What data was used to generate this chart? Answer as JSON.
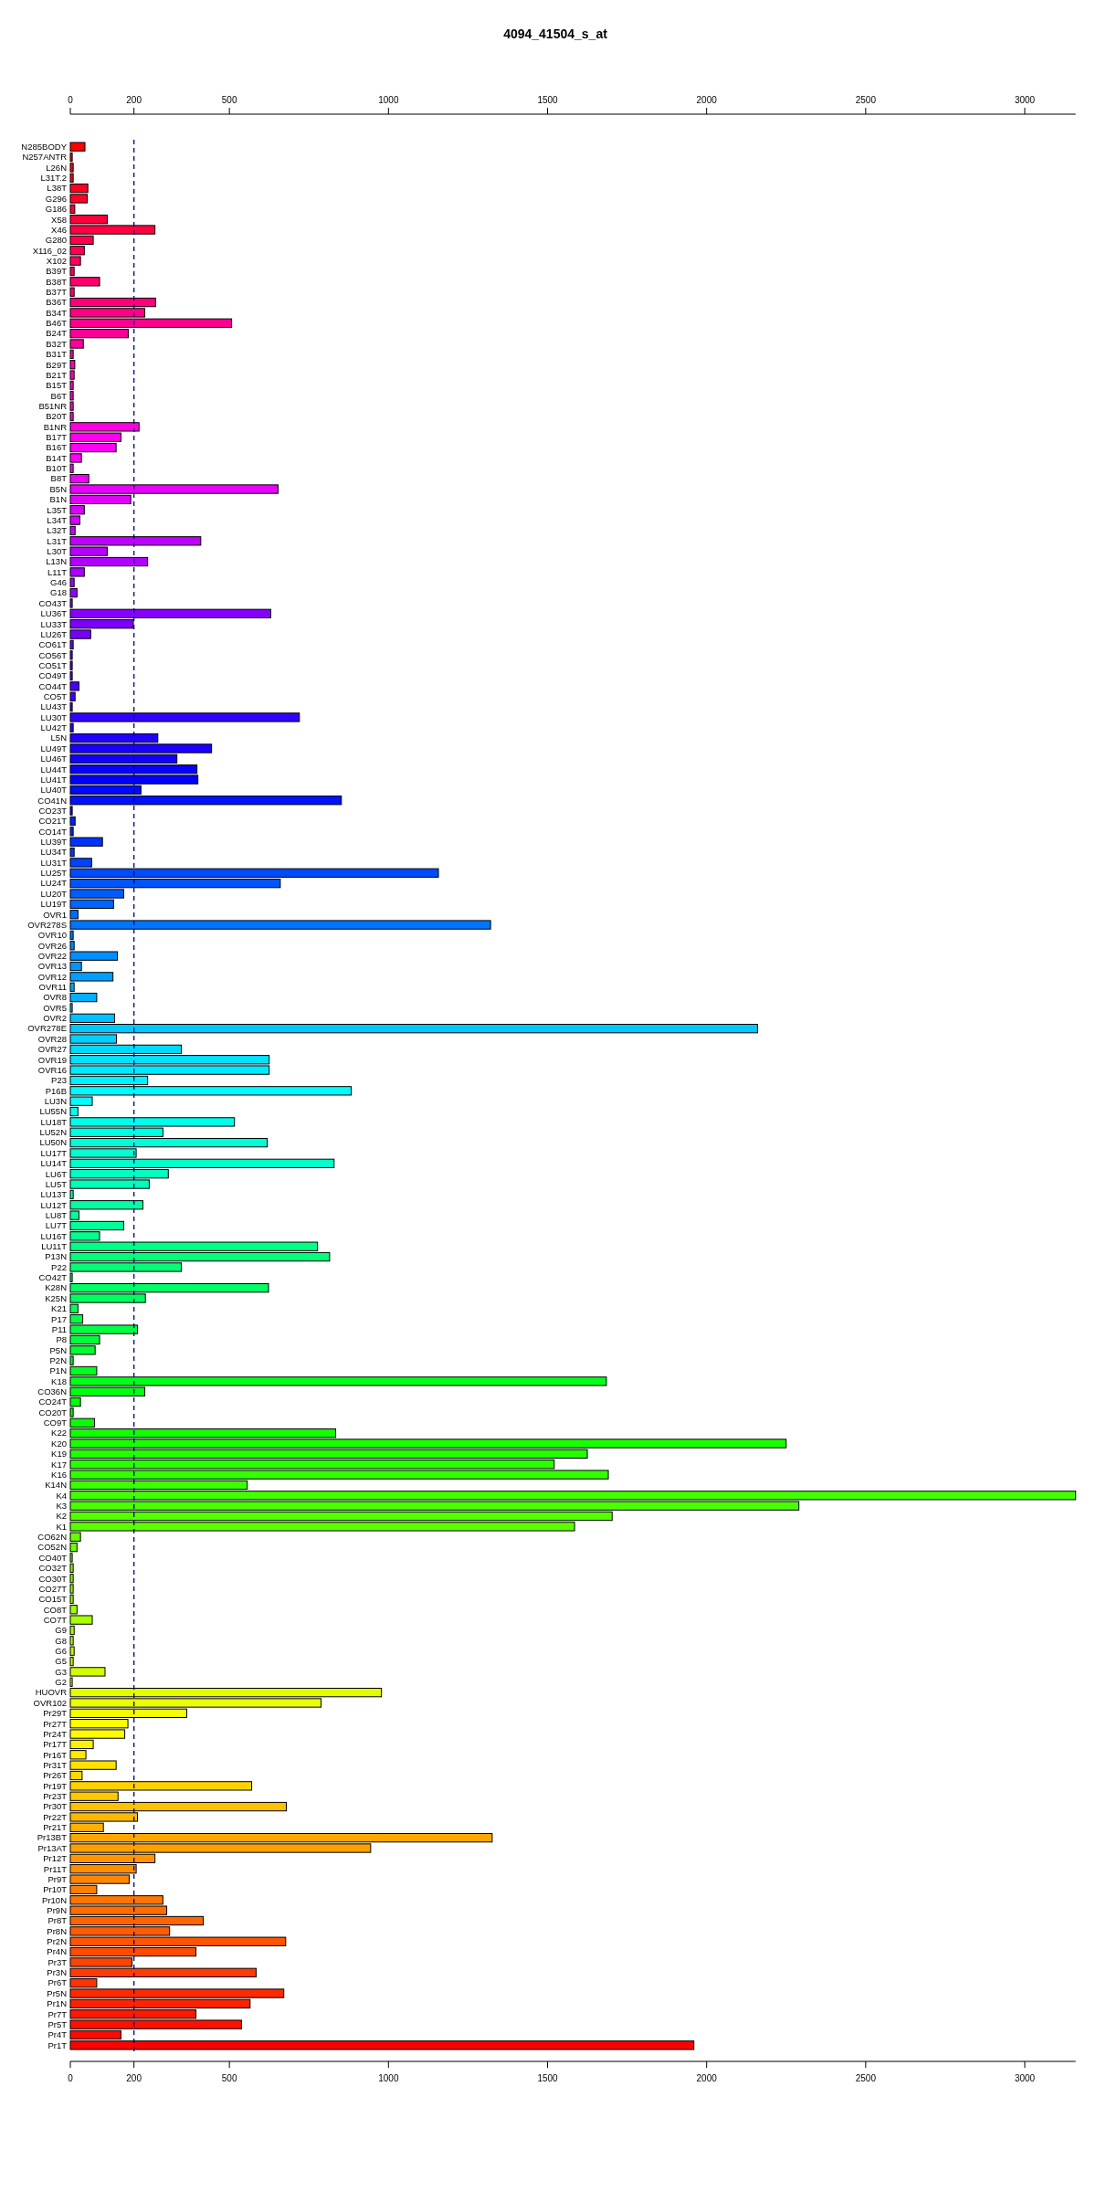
{
  "chart_data": {
    "type": "bar",
    "orientation": "horizontal",
    "title": "4094_41504_s_at",
    "categories": [
      "N285BODY",
      "N257ANTR",
      "L26N",
      "L31T.2",
      "L38T",
      "G296",
      "G186",
      "X58",
      "X46",
      "G280",
      "X116_02",
      "X102",
      "B39T",
      "B38T",
      "B37T",
      "B36T",
      "B34T",
      "B46T",
      "B24T",
      "B32T",
      "B31T",
      "B29T",
      "B21T",
      "B15T",
      "B6T",
      "B51NR",
      "B20T",
      "B1NR",
      "B17T",
      "B16T",
      "B14T",
      "B10T",
      "B8T",
      "B5N",
      "B1N",
      "L35T",
      "L34T",
      "L32T",
      "L31T",
      "L30T",
      "L13N",
      "L11T",
      "G46",
      "G18",
      "CO43T",
      "LU36T",
      "LU33T",
      "LU26T",
      "CO61T",
      "CO56T",
      "CO51T",
      "CO49T",
      "CO44T",
      "CO5T",
      "LU43T",
      "LU30T",
      "LU42T",
      "L5N",
      "LU49T",
      "LU46T",
      "LU44T",
      "LU41T",
      "LU40T",
      "CO41N",
      "CO23T",
      "CO21T",
      "CO14T",
      "LU39T",
      "LU34T",
      "LU31T",
      "LU25T",
      "LU24T",
      "LU20T",
      "LU19T",
      "OVR1",
      "OVR278S",
      "OVR10",
      "OVR26",
      "OVR22",
      "OVR13",
      "OVR12",
      "OVR11",
      "OVR8",
      "OVR5",
      "OVR2",
      "OVR278E",
      "OVR28",
      "OVR27",
      "OVR19",
      "OVR16",
      "P23",
      "P16B",
      "LU3N",
      "LU55N",
      "LU18T",
      "LU52N",
      "LU50N",
      "LU17T",
      "LU14T",
      "LU6T",
      "LU5T",
      "LU13T",
      "LU12T",
      "LU8T",
      "LU7T",
      "LU16T",
      "LU11T",
      "P13N",
      "P22",
      "CO42T",
      "K28N",
      "K25N",
      "K21",
      "P17",
      "P11",
      "P8",
      "P5N",
      "P2N",
      "P1N",
      "K18",
      "CO36N",
      "CO24T",
      "CO20T",
      "CO9T",
      "K22",
      "K20",
      "K19",
      "K17",
      "K16",
      "K14N",
      "K4",
      "K3",
      "K2",
      "K1",
      "CO62N",
      "CO52N",
      "CO40T",
      "CO32T",
      "CO30T",
      "CO27T",
      "CO15T",
      "CO8T",
      "CO7T",
      "G9",
      "G8",
      "G6",
      "G5",
      "G3",
      "G2",
      "HUOVR",
      "OVR102",
      "Pr29T",
      "Pr27T",
      "Pr24T",
      "Pr17T",
      "Pr16T",
      "Pr31T",
      "Pr26T",
      "Pr19T",
      "Pr23T",
      "Pr30T",
      "Pr22T",
      "Pr21T",
      "Pr13BT",
      "Pr13AT",
      "Pr12T",
      "Pr11T",
      "Pr9T",
      "Pr10T",
      "Pr10N",
      "Pr9N",
      "Pr8T",
      "Pr8N",
      "Pr2N",
      "Pr4N",
      "Pr3T",
      "Pr3N",
      "Pr6T",
      "Pr5N",
      "Pr1N",
      "Pr7T",
      "Pr5T",
      "Pr4T",
      "Pr1T"
    ],
    "values": [
      46,
      6,
      9,
      9,
      55,
      53,
      14,
      116,
      266,
      72,
      44,
      32,
      12,
      92,
      12,
      268,
      234,
      507,
      182,
      41,
      9,
      14,
      12,
      9,
      9,
      9,
      9,
      216,
      159,
      144,
      35,
      9,
      58,
      653,
      190,
      44,
      30,
      15,
      410,
      116,
      243,
      44,
      12,
      21,
      6,
      630,
      198,
      64,
      9,
      6,
      6,
      6,
      27,
      15,
      6,
      720,
      9,
      275,
      444,
      335,
      398,
      401,
      222,
      852,
      6,
      15,
      9,
      101,
      12,
      67,
      1157,
      660,
      168,
      136,
      24,
      1321,
      9,
      12,
      148,
      35,
      134,
      12,
      83,
      6,
      139,
      2160,
      145,
      349,
      625,
      625,
      243,
      883,
      69,
      24,
      516,
      291,
      619,
      207,
      829,
      308,
      248,
      9,
      228,
      27,
      168,
      92,
      777,
      815,
      349,
      6,
      623,
      236,
      24,
      39,
      211,
      92,
      78,
      9,
      83,
      1685,
      234,
      32,
      9,
      76,
      834,
      2250,
      1625,
      1521,
      1691,
      556,
      3160,
      2290,
      1703,
      1585,
      32,
      21,
      6,
      9,
      9,
      9,
      9,
      21,
      69,
      12,
      9,
      12,
      9,
      109,
      6,
      978,
      788,
      366,
      181,
      171,
      72,
      49,
      144,
      37,
      570,
      150,
      679,
      211,
      104,
      1326,
      944,
      266,
      207,
      185,
      83,
      291,
      303,
      418,
      312,
      677,
      395,
      194,
      584,
      83,
      671,
      565,
      395,
      538,
      159,
      1960
    ],
    "colors": [
      "#ff0000",
      "#ff0008",
      "#ff0011",
      "#ff0019",
      "#ff0021",
      "#ff002a",
      "#ff0032",
      "#ff003b",
      "#ff0043",
      "#ff004b",
      "#ff0054",
      "#ff005c",
      "#ff0064",
      "#ff006d",
      "#ff0075",
      "#ff007d",
      "#ff0086",
      "#ff008e",
      "#ff0096",
      "#ff009f",
      "#ff00a7",
      "#ff00b0",
      "#ff00b8",
      "#ff00c0",
      "#ff00c9",
      "#ff00d1",
      "#ff00d9",
      "#ff00e2",
      "#ff00ea",
      "#ff00f2",
      "#ff00fb",
      "#fb00ff",
      "#f200ff",
      "#ea00ff",
      "#e200ff",
      "#d900ff",
      "#d100ff",
      "#c900ff",
      "#c000ff",
      "#b800ff",
      "#b000ff",
      "#a700ff",
      "#9f00ff",
      "#9600ff",
      "#8e00ff",
      "#8600ff",
      "#7d00ff",
      "#7500ff",
      "#6d00ff",
      "#6400ff",
      "#5c00ff",
      "#5400ff",
      "#4b00ff",
      "#4300ff",
      "#3b00ff",
      "#3200ff",
      "#2a00ff",
      "#2100ff",
      "#1900ff",
      "#1100ff",
      "#0800ff",
      "#0000ff",
      "#0008ff",
      "#0011ff",
      "#0019ff",
      "#0021ff",
      "#002aff",
      "#0032ff",
      "#003bff",
      "#0043ff",
      "#004bff",
      "#0054ff",
      "#005cff",
      "#0064ff",
      "#006dff",
      "#0075ff",
      "#007dff",
      "#0086ff",
      "#008eff",
      "#0096ff",
      "#009fff",
      "#00a7ff",
      "#00b0ff",
      "#00b8ff",
      "#00c0ff",
      "#00c9ff",
      "#00d1ff",
      "#00d9ff",
      "#00e2ff",
      "#00eaff",
      "#00f2ff",
      "#00fbff",
      "#00fffb",
      "#00fff2",
      "#00ffea",
      "#00ffe2",
      "#00ffd9",
      "#00ffd1",
      "#00ffc9",
      "#00ffc0",
      "#00ffb8",
      "#00ffb0",
      "#00ffa7",
      "#00ff9f",
      "#00ff96",
      "#00ff8e",
      "#00ff86",
      "#00ff7d",
      "#00ff75",
      "#00ff6d",
      "#00ff64",
      "#00ff5c",
      "#00ff54",
      "#00ff4b",
      "#00ff43",
      "#00ff3b",
      "#00ff32",
      "#00ff2a",
      "#00ff21",
      "#00ff19",
      "#00ff11",
      "#00ff08",
      "#00ff00",
      "#08ff00",
      "#11ff00",
      "#19ff00",
      "#21ff00",
      "#2aff00",
      "#32ff00",
      "#3bff00",
      "#43ff00",
      "#4bff00",
      "#54ff00",
      "#5cff00",
      "#64ff00",
      "#6dff00",
      "#75ff00",
      "#7dff00",
      "#86ff00",
      "#8eff00",
      "#96ff00",
      "#9fff00",
      "#a7ff00",
      "#b0ff00",
      "#b8ff00",
      "#c0ff00",
      "#c9ff00",
      "#d1ff00",
      "#d9ff00",
      "#e2ff00",
      "#eaff00",
      "#f2ff00",
      "#fbff00",
      "#fffb00",
      "#fff200",
      "#ffea00",
      "#ffe200",
      "#ffd900",
      "#ffd100",
      "#ffc900",
      "#ffc000",
      "#ffb800",
      "#ffb000",
      "#ffa700",
      "#ff9f00",
      "#ff9600",
      "#ff8e00",
      "#ff8600",
      "#ff7d00",
      "#ff7500",
      "#ff6d00",
      "#ff6400",
      "#ff5c00",
      "#ff5400",
      "#ff4b00",
      "#ff4300",
      "#ff3b00",
      "#ff3200",
      "#ff2a00",
      "#ff2100",
      "#ff1900",
      "#ff1100",
      "#ff0800",
      "#ff0000"
    ],
    "xlim": [
      0,
      3160
    ],
    "xticks": [
      0,
      200,
      500,
      1000,
      1500,
      2000,
      2500,
      3000
    ],
    "x2lim": [
      0,
      3160
    ],
    "x2ticks": [
      0,
      200,
      500,
      1000,
      1500,
      2000,
      2500,
      3000
    ],
    "ref_lines": [
      {
        "axis": "x",
        "value": 200,
        "color": "#00008b",
        "line_style": "dashed"
      }
    ]
  }
}
